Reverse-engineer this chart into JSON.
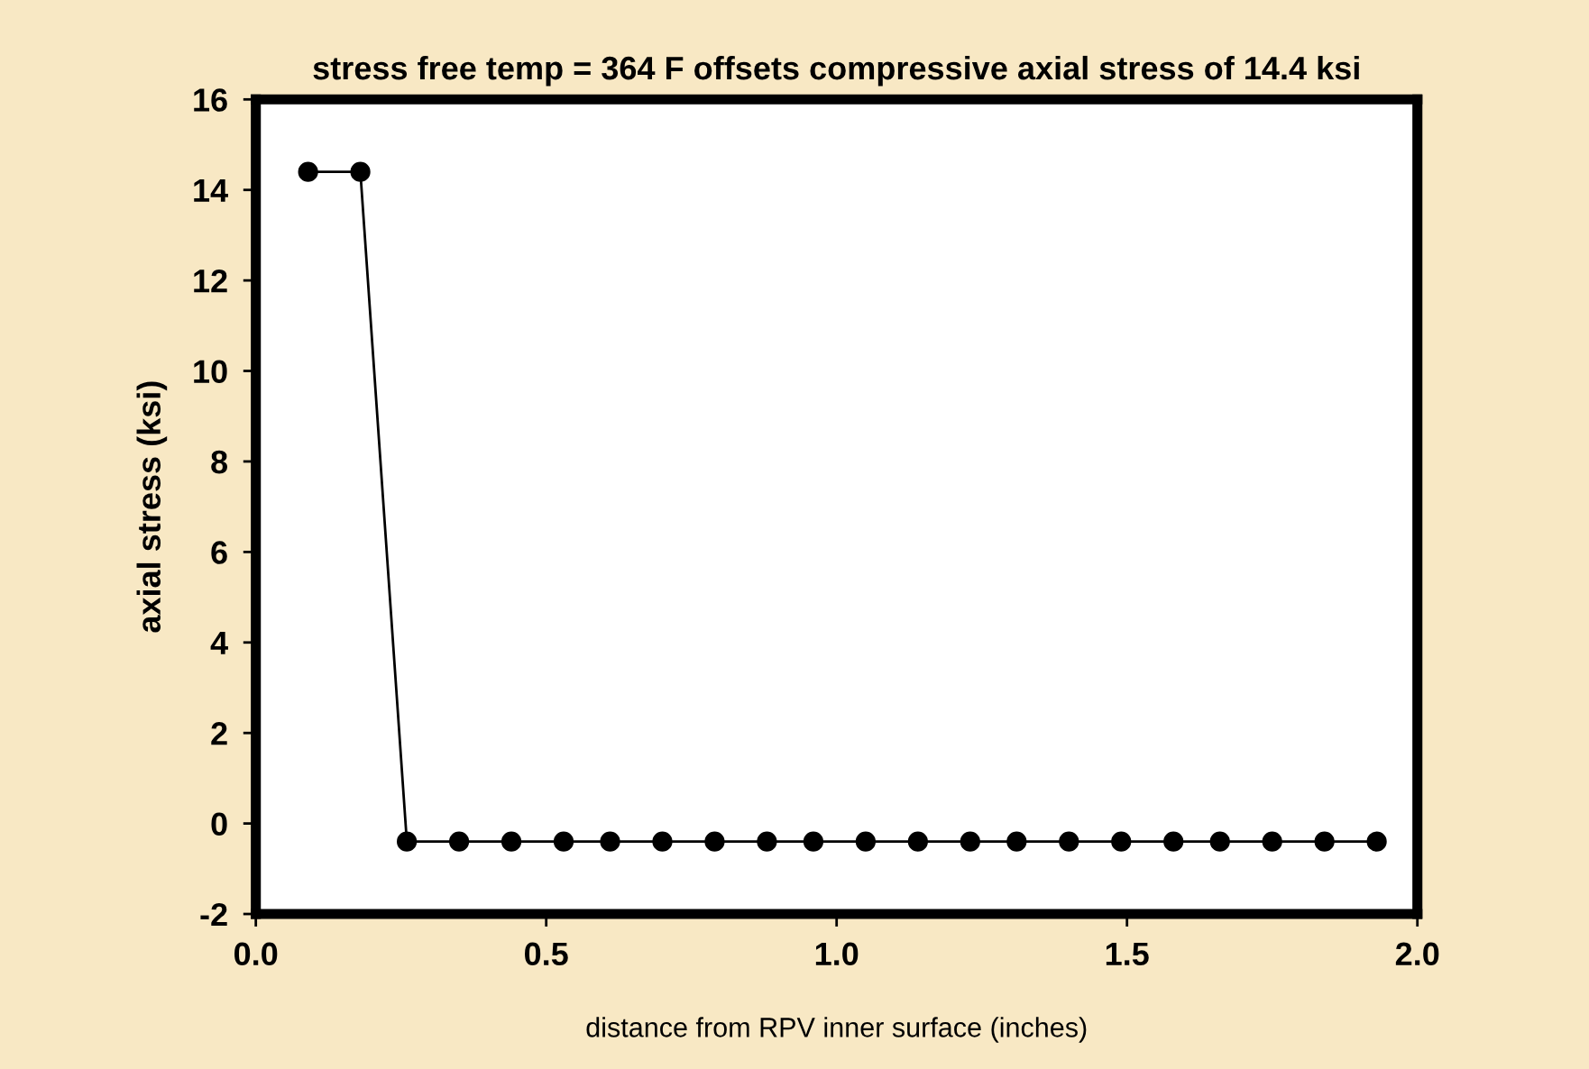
{
  "chart_data": {
    "type": "line",
    "title": "stress free temp = 364 F offsets compressive axial stress of 14.4 ksi",
    "xlabel": "distance from RPV inner surface (inches)",
    "ylabel": "axial stress (ksi)",
    "x": [
      0.09,
      0.18,
      0.26,
      0.35,
      0.44,
      0.53,
      0.61,
      0.7,
      0.79,
      0.88,
      0.96,
      1.05,
      1.14,
      1.23,
      1.31,
      1.4,
      1.49,
      1.58,
      1.66,
      1.75,
      1.84,
      1.93
    ],
    "series": [
      {
        "color": "#000000",
        "values": [
          14.4,
          14.4,
          -0.4,
          -0.4,
          -0.4,
          -0.4,
          -0.4,
          -0.4,
          -0.4,
          -0.4,
          -0.4,
          -0.4,
          -0.4,
          -0.4,
          -0.4,
          -0.4,
          -0.4,
          -0.4,
          -0.4,
          -0.4,
          -0.4,
          -0.4
        ]
      }
    ],
    "xlim": [
      0,
      2
    ],
    "xticks": [
      {
        "value": 0,
        "label": "0.0"
      },
      {
        "value": 0.5,
        "label": "0.5"
      },
      {
        "value": 1,
        "label": "1.0"
      },
      {
        "value": 1.5,
        "label": "1.5"
      },
      {
        "value": 2,
        "label": "2.0"
      }
    ],
    "ylim": [
      -2,
      16
    ],
    "yticks": [
      -2,
      0,
      2,
      4,
      6,
      8,
      10,
      12,
      14,
      16
    ],
    "marker": "circle",
    "line_style": "solid",
    "grid": false
  }
}
